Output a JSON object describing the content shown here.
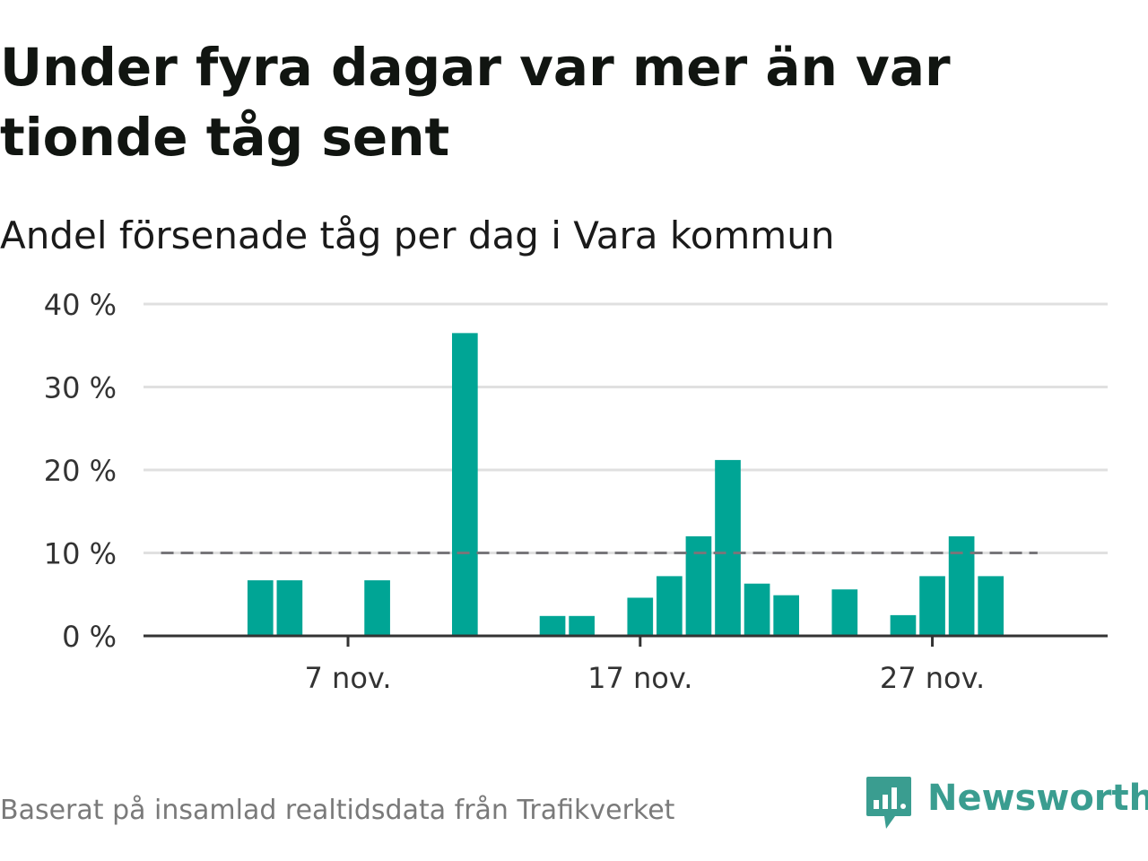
{
  "header": {
    "title": "Under fyra dagar var mer än var tionde tåg sent",
    "subtitle": "Andel försenade tåg per dag i Vara kommun"
  },
  "footer": {
    "source": "Baserat på insamlad realtidsdata från Trafikverket",
    "brand": "Newsworthy"
  },
  "colors": {
    "bar": "#00a595",
    "reference_line": "#77767a",
    "grid": "#e0e0e0",
    "axis": "#333333",
    "brand": "#3a9d90"
  },
  "icons": {
    "logo": "newsworthy-logo-icon"
  },
  "chart_data": {
    "type": "bar",
    "title": "Andel försenade tåg per dag i Vara kommun",
    "xlabel": "",
    "ylabel": "",
    "x_unit": "day of November",
    "x_range": [
      0,
      33
    ],
    "ylim": [
      0,
      40
    ],
    "y_ticks": [
      {
        "value": 0,
        "label": "0 %"
      },
      {
        "value": 10,
        "label": "10 %"
      },
      {
        "value": 20,
        "label": "20 %"
      },
      {
        "value": 30,
        "label": "30 %"
      },
      {
        "value": 40,
        "label": "40 %"
      }
    ],
    "x_ticks": [
      {
        "value": 7,
        "label": "7 nov."
      },
      {
        "value": 17,
        "label": "17 nov."
      },
      {
        "value": 27,
        "label": "27 nov."
      }
    ],
    "x": [
      1,
      2,
      3,
      4,
      5,
      6,
      7,
      8,
      9,
      10,
      11,
      12,
      13,
      14,
      15,
      16,
      17,
      18,
      19,
      20,
      21,
      22,
      23,
      24,
      25,
      26,
      27,
      28,
      29,
      30
    ],
    "values": [
      0,
      0,
      0,
      6.7,
      6.7,
      0,
      0,
      6.7,
      0,
      0,
      36.5,
      0,
      0,
      2.4,
      2.4,
      0,
      4.6,
      7.2,
      12,
      21.2,
      6.3,
      4.9,
      0,
      5.6,
      0,
      2.5,
      7.2,
      12,
      7.2,
      0
    ],
    "reference_line": {
      "y": 10,
      "x_start": 0.6,
      "x_end": 30.6,
      "style": "dashed"
    },
    "grid": true,
    "legend": "none"
  }
}
